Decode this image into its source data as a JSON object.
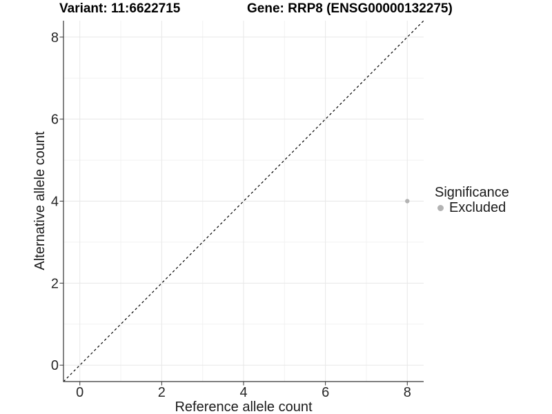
{
  "header": {
    "variant_title": "Variant: 11:6622715",
    "gene_title": "Gene: RRP8 (ENSG00000132275)"
  },
  "chart_data": {
    "type": "scatter",
    "xlabel": "Reference allele count",
    "ylabel": "Alternative allele count",
    "xlim": [
      -0.4,
      8.4
    ],
    "ylim": [
      -0.4,
      8.4
    ],
    "x_ticks": [
      0,
      2,
      4,
      6,
      8
    ],
    "y_ticks": [
      0,
      2,
      4,
      6,
      8
    ],
    "x_minor_ticks": [
      1,
      3,
      5,
      7
    ],
    "y_minor_ticks": [
      1,
      3,
      5,
      7
    ],
    "grid": true,
    "points": [
      {
        "x": 8,
        "y": 4,
        "series": "Excluded",
        "color": "#b3b3b3"
      }
    ],
    "reference_line": {
      "type": "identity",
      "from": [
        -0.4,
        -0.4
      ],
      "to": [
        8.4,
        8.4
      ],
      "style": "dashed",
      "color": "#000000"
    },
    "legend": {
      "title": "Significance",
      "position": "right",
      "items": [
        {
          "label": "Excluded",
          "color": "#b3b3b3"
        }
      ]
    },
    "colors": {
      "grid_major": "#e7e7e7",
      "grid_minor": "#f2f2f2",
      "axis": "#333333",
      "tick_text": "#262626",
      "title_text": "#000000"
    }
  }
}
